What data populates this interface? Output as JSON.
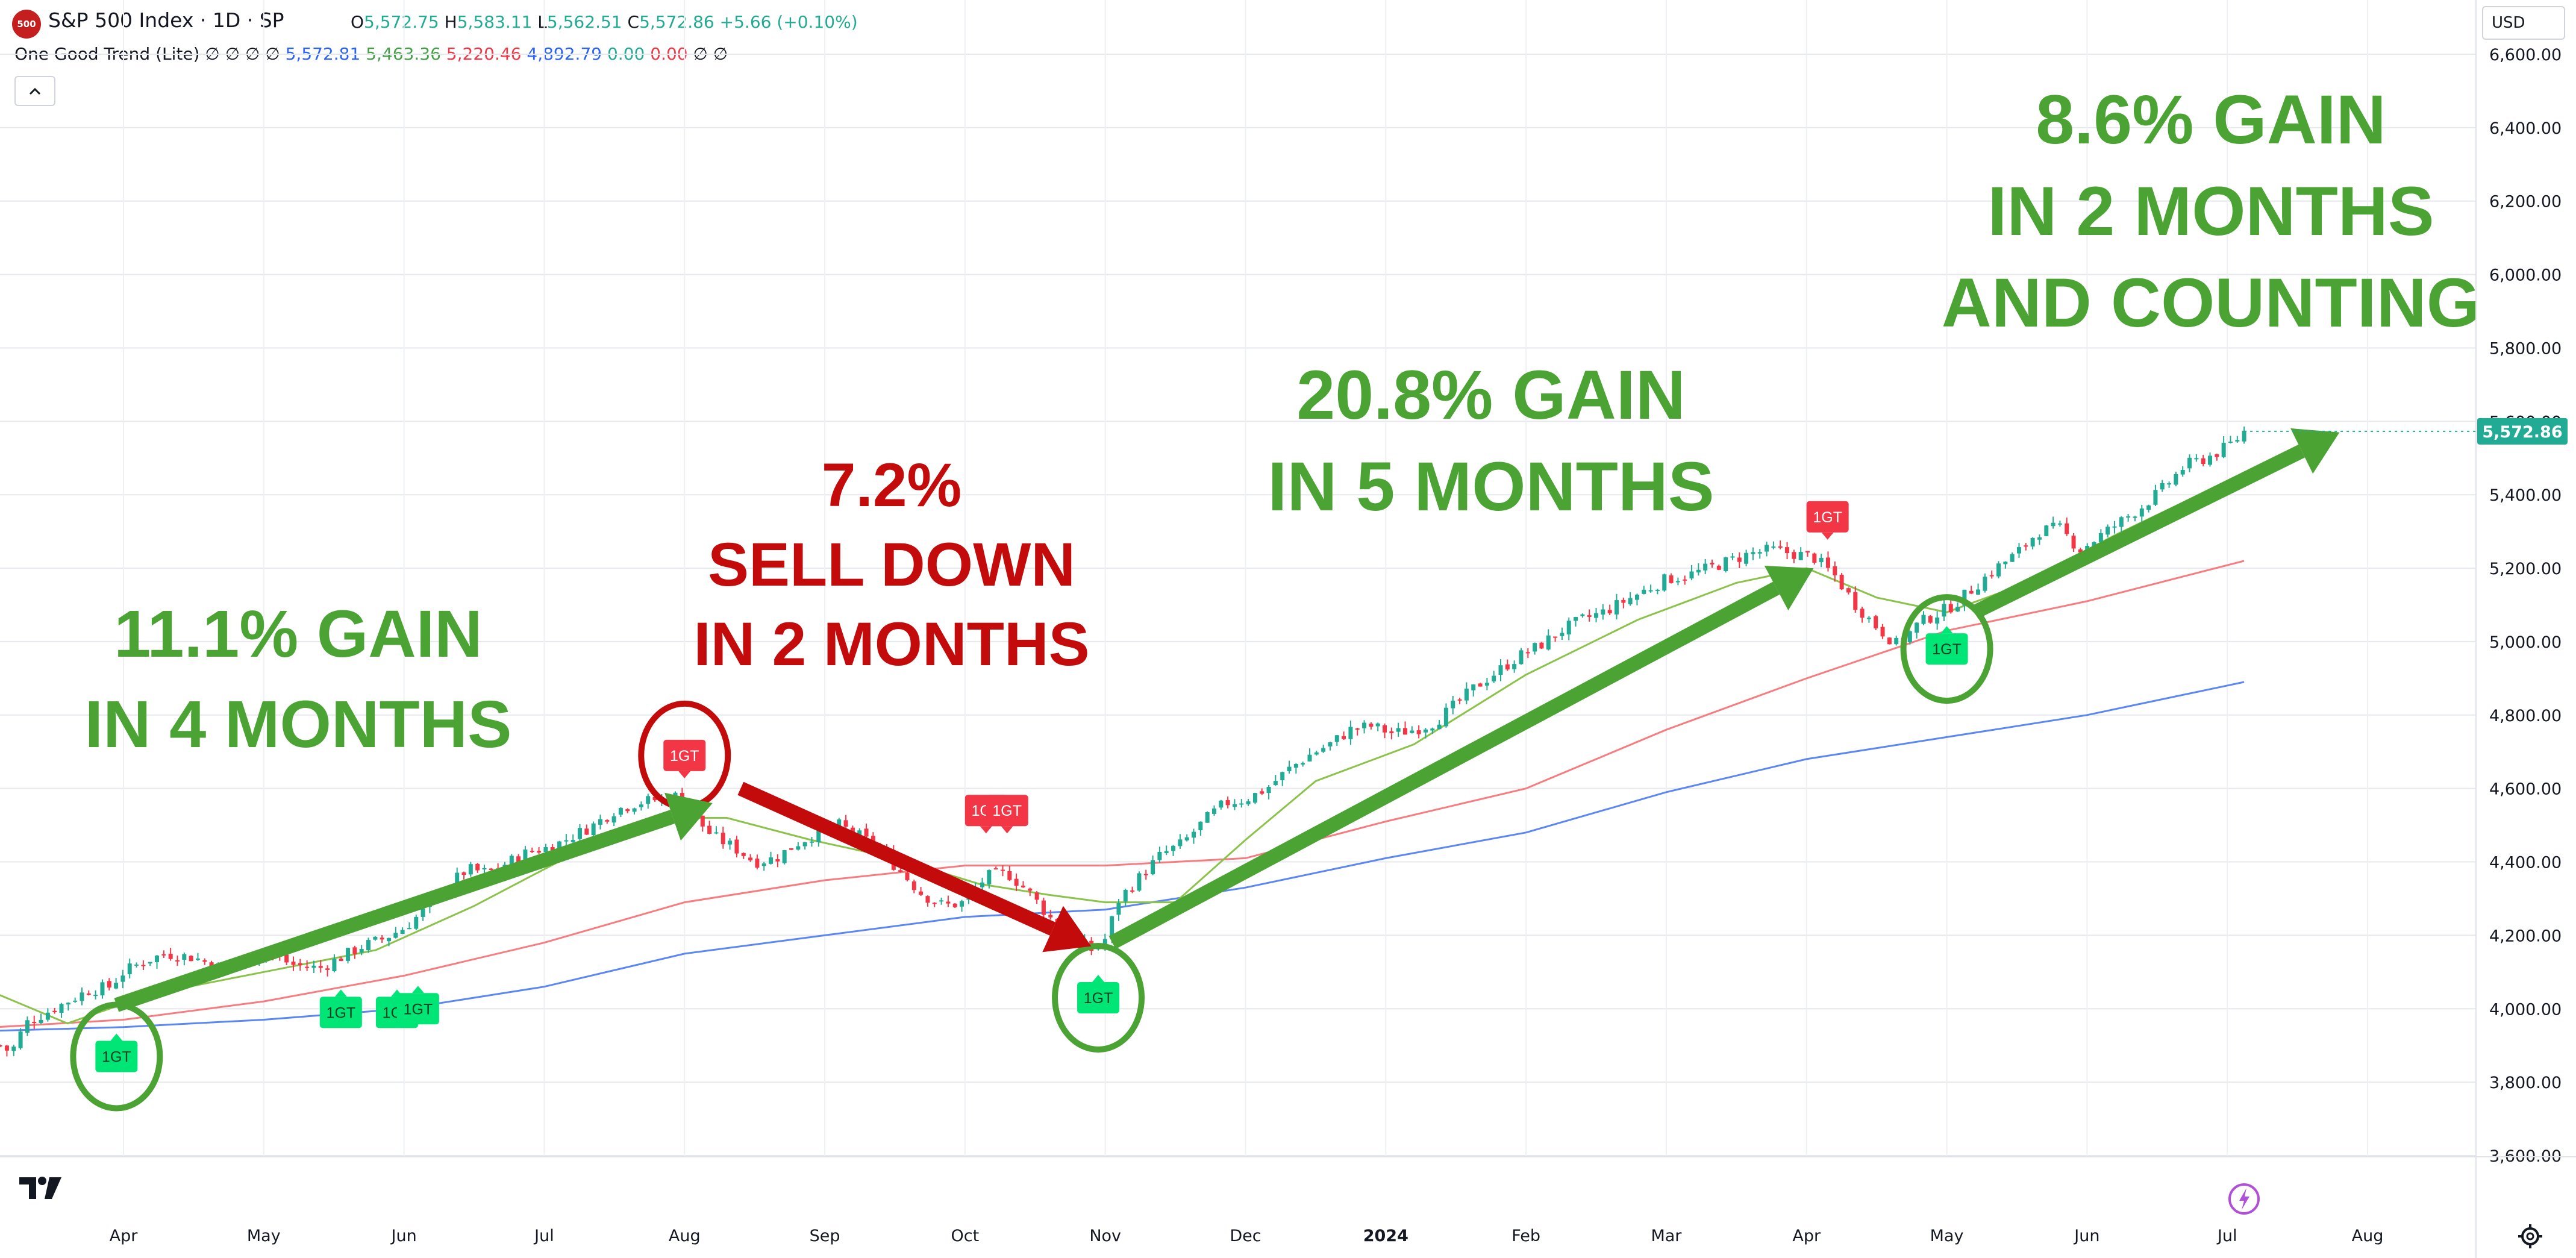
{
  "header": {
    "symbol_badge": "500",
    "title": "S&P 500 Index · 1D · SP",
    "ohlc": [
      {
        "label": "O",
        "value": "5,572.75"
      },
      {
        "label": "H",
        "value": "5,583.11"
      },
      {
        "label": "L",
        "value": "5,562.51"
      },
      {
        "label": "C",
        "value": "5,572.86"
      }
    ],
    "change": "+5.66 (+0.10%)",
    "currency": "USD"
  },
  "indicator": {
    "name": "One Good Trend (Lite)",
    "placeholders": [
      "∅",
      "∅",
      "∅",
      "∅"
    ],
    "values": [
      {
        "value": "5,572.81",
        "color": "#2962ff"
      },
      {
        "value": "5,463.36",
        "color": "#43a047"
      },
      {
        "value": "5,220.46",
        "color": "#f23645"
      },
      {
        "value": "4,892.79",
        "color": "#2962ff"
      },
      {
        "value": "0.00",
        "color": "#22ab94"
      },
      {
        "value": "0.00",
        "color": "#f23645"
      }
    ],
    "trailing": [
      "∅",
      "∅"
    ]
  },
  "colors": {
    "up": "#22ab94",
    "down": "#f23645",
    "ma_fast": "#8bc34a",
    "ma_mid": "#f77c80",
    "ma_slow": "#5b87f5",
    "annotation_green": "#4ba333",
    "annotation_red": "#c40b0b",
    "buy_marker": "#00e676",
    "sell_marker": "#f23645",
    "last_price_bg": "#22ab94"
  },
  "chart_data": {
    "type": "candlestick",
    "title": "S&P 500 Index · 1D · SP",
    "y_ticks": [
      "6,600.00",
      "6,400.00",
      "6,200.00",
      "6,000.00",
      "5,800.00",
      "5,600.00",
      "5,400.00",
      "5,200.00",
      "5,000.00",
      "4,800.00",
      "4,600.00",
      "4,400.00",
      "4,200.00",
      "4,000.00",
      "3,800.00",
      "3,600.00"
    ],
    "ylim": [
      3550,
      6650
    ],
    "x_ticks": [
      {
        "label": "Apr",
        "t": 1.0
      },
      {
        "label": "May",
        "t": 2.0
      },
      {
        "label": "Jun",
        "t": 3.0
      },
      {
        "label": "Jul",
        "t": 4.0
      },
      {
        "label": "Aug",
        "t": 5.0
      },
      {
        "label": "Sep",
        "t": 6.0
      },
      {
        "label": "Oct",
        "t": 7.0
      },
      {
        "label": "Nov",
        "t": 8.0
      },
      {
        "label": "Dec",
        "t": 9.0
      },
      {
        "label": "2024",
        "t": 10.0,
        "bold": true
      },
      {
        "label": "Feb",
        "t": 11.0
      },
      {
        "label": "Mar",
        "t": 12.0
      },
      {
        "label": "Apr",
        "t": 13.0
      },
      {
        "label": "May",
        "t": 14.0
      },
      {
        "label": "Jun",
        "t": 15.0
      },
      {
        "label": "Jul",
        "t": 16.0
      },
      {
        "label": "Aug",
        "t": 17.0
      }
    ],
    "xlim": [
      0.1,
      17.0
    ],
    "last_price": "5,572.86",
    "last_value": 5572.86,
    "hidden_tick_under_label": "5,600.00",
    "price_path": [
      [
        0.12,
        3900
      ],
      [
        0.2,
        3880
      ],
      [
        0.3,
        3960
      ],
      [
        0.45,
        3990
      ],
      [
        0.6,
        4020
      ],
      [
        0.75,
        4050
      ],
      [
        0.9,
        4060
      ],
      [
        1.0,
        4100
      ],
      [
        1.15,
        4130
      ],
      [
        1.3,
        4150
      ],
      [
        1.5,
        4140
      ],
      [
        1.7,
        4110
      ],
      [
        1.85,
        4130
      ],
      [
        2.0,
        4160
      ],
      [
        2.2,
        4120
      ],
      [
        2.4,
        4110
      ],
      [
        2.55,
        4140
      ],
      [
        2.7,
        4170
      ],
      [
        2.85,
        4190
      ],
      [
        3.0,
        4220
      ],
      [
        3.15,
        4270
      ],
      [
        3.3,
        4330
      ],
      [
        3.45,
        4380
      ],
      [
        3.6,
        4370
      ],
      [
        3.75,
        4400
      ],
      [
        3.9,
        4430
      ],
      [
        4.05,
        4440
      ],
      [
        4.2,
        4470
      ],
      [
        4.35,
        4500
      ],
      [
        4.5,
        4540
      ],
      [
        4.65,
        4560
      ],
      [
        4.8,
        4570
      ],
      [
        4.95,
        4580
      ],
      [
        5.05,
        4530
      ],
      [
        5.2,
        4470
      ],
      [
        5.35,
        4440
      ],
      [
        5.5,
        4400
      ],
      [
        5.65,
        4410
      ],
      [
        5.8,
        4450
      ],
      [
        5.95,
        4480
      ],
      [
        6.1,
        4500
      ],
      [
        6.25,
        4470
      ],
      [
        6.4,
        4430
      ],
      [
        6.55,
        4370
      ],
      [
        6.7,
        4310
      ],
      [
        6.85,
        4280
      ],
      [
        7.0,
        4290
      ],
      [
        7.15,
        4360
      ],
      [
        7.3,
        4370
      ],
      [
        7.45,
        4320
      ],
      [
        7.6,
        4250
      ],
      [
        7.75,
        4200
      ],
      [
        7.9,
        4160
      ],
      [
        8.0,
        4190
      ],
      [
        8.1,
        4300
      ],
      [
        8.25,
        4360
      ],
      [
        8.4,
        4420
      ],
      [
        8.55,
        4450
      ],
      [
        8.7,
        4510
      ],
      [
        8.85,
        4560
      ],
      [
        9.0,
        4570
      ],
      [
        9.15,
        4600
      ],
      [
        9.3,
        4650
      ],
      [
        9.45,
        4690
      ],
      [
        9.6,
        4720
      ],
      [
        9.75,
        4760
      ],
      [
        9.9,
        4770
      ],
      [
        10.05,
        4750
      ],
      [
        10.2,
        4760
      ],
      [
        10.35,
        4780
      ],
      [
        10.5,
        4830
      ],
      [
        10.65,
        4880
      ],
      [
        10.8,
        4920
      ],
      [
        10.95,
        4960
      ],
      [
        11.1,
        4990
      ],
      [
        11.25,
        5030
      ],
      [
        11.4,
        5060
      ],
      [
        11.55,
        5080
      ],
      [
        11.7,
        5110
      ],
      [
        11.85,
        5140
      ],
      [
        12.0,
        5170
      ],
      [
        12.15,
        5180
      ],
      [
        12.3,
        5200
      ],
      [
        12.45,
        5220
      ],
      [
        12.6,
        5240
      ],
      [
        12.75,
        5250
      ],
      [
        12.9,
        5240
      ],
      [
        13.05,
        5230
      ],
      [
        13.2,
        5180
      ],
      [
        13.35,
        5100
      ],
      [
        13.5,
        5040
      ],
      [
        13.65,
        4990
      ],
      [
        13.8,
        5050
      ],
      [
        13.95,
        5080
      ],
      [
        14.05,
        5100
      ],
      [
        14.2,
        5150
      ],
      [
        14.35,
        5200
      ],
      [
        14.5,
        5240
      ],
      [
        14.65,
        5300
      ],
      [
        14.8,
        5310
      ],
      [
        14.95,
        5250
      ],
      [
        15.1,
        5290
      ],
      [
        15.25,
        5330
      ],
      [
        15.4,
        5370
      ],
      [
        15.55,
        5420
      ],
      [
        15.7,
        5480
      ],
      [
        15.85,
        5500
      ],
      [
        15.95,
        5520
      ],
      [
        16.05,
        5545
      ],
      [
        16.12,
        5572.86
      ]
    ],
    "ma_fast": [
      [
        0.1,
        4040
      ],
      [
        0.6,
        3960
      ],
      [
        1.2,
        4040
      ],
      [
        2.0,
        4100
      ],
      [
        2.8,
        4160
      ],
      [
        3.5,
        4280
      ],
      [
        4.2,
        4420
      ],
      [
        4.8,
        4520
      ],
      [
        5.3,
        4520
      ],
      [
        5.9,
        4460
      ],
      [
        6.5,
        4410
      ],
      [
        7.1,
        4340
      ],
      [
        7.6,
        4310
      ],
      [
        8.0,
        4290
      ],
      [
        8.5,
        4290
      ],
      [
        9.0,
        4460
      ],
      [
        9.5,
        4620
      ],
      [
        10.2,
        4720
      ],
      [
        11.0,
        4910
      ],
      [
        11.8,
        5060
      ],
      [
        12.5,
        5160
      ],
      [
        13.0,
        5200
      ],
      [
        13.5,
        5120
      ],
      [
        14.0,
        5080
      ],
      [
        14.5,
        5150
      ],
      [
        15.2,
        5290
      ],
      [
        15.8,
        5400
      ],
      [
        16.12,
        5460
      ]
    ],
    "ma_mid": [
      [
        0.1,
        3950
      ],
      [
        1.0,
        3970
      ],
      [
        2.0,
        4020
      ],
      [
        3.0,
        4090
      ],
      [
        4.0,
        4180
      ],
      [
        5.0,
        4290
      ],
      [
        6.0,
        4350
      ],
      [
        7.0,
        4390
      ],
      [
        8.0,
        4390
      ],
      [
        9.0,
        4410
      ],
      [
        10.0,
        4510
      ],
      [
        11.0,
        4600
      ],
      [
        12.0,
        4760
      ],
      [
        13.0,
        4900
      ],
      [
        14.0,
        5030
      ],
      [
        15.0,
        5110
      ],
      [
        16.12,
        5220
      ]
    ],
    "ma_slow": [
      [
        0.1,
        3940
      ],
      [
        1.0,
        3950
      ],
      [
        2.0,
        3970
      ],
      [
        3.0,
        4000
      ],
      [
        4.0,
        4060
      ],
      [
        5.0,
        4150
      ],
      [
        6.0,
        4200
      ],
      [
        7.0,
        4250
      ],
      [
        8.0,
        4270
      ],
      [
        9.0,
        4330
      ],
      [
        10.0,
        4410
      ],
      [
        11.0,
        4480
      ],
      [
        12.0,
        4590
      ],
      [
        13.0,
        4680
      ],
      [
        14.0,
        4740
      ],
      [
        15.0,
        4800
      ],
      [
        16.12,
        4890
      ]
    ],
    "signals": [
      {
        "type": "buy",
        "label": "1GT",
        "t": 0.95,
        "price": 3870,
        "circled": true
      },
      {
        "type": "buy",
        "label": "1GT",
        "t": 2.55,
        "price": 3990
      },
      {
        "type": "buy",
        "label": "1GT",
        "t": 2.95,
        "price": 3990
      },
      {
        "type": "buy",
        "label": "1GT",
        "t": 3.1,
        "price": 4000
      },
      {
        "type": "sell",
        "label": "1GT",
        "t": 5.0,
        "price": 4690,
        "circled": true
      },
      {
        "type": "sell",
        "label": "1GT",
        "t": 7.15,
        "price": 4540
      },
      {
        "type": "sell",
        "label": "1GT",
        "t": 7.3,
        "price": 4540
      },
      {
        "type": "buy",
        "label": "1GT",
        "t": 7.95,
        "price": 4030,
        "circled": true
      },
      {
        "type": "sell",
        "label": "1GT",
        "t": 13.15,
        "price": 5340
      },
      {
        "type": "buy",
        "label": "1GT",
        "t": 14.0,
        "price": 4980,
        "circled": true
      }
    ],
    "annotations": [
      {
        "color": "green",
        "lines": [
          "11.1% GAIN",
          "IN 4 MONTHS"
        ]
      },
      {
        "color": "red",
        "lines": [
          "7.2%",
          "SELL DOWN",
          "IN 2 MONTHS"
        ]
      },
      {
        "color": "green",
        "lines": [
          "20.8% GAIN",
          "IN 5 MONTHS"
        ]
      },
      {
        "color": "green",
        "lines": [
          "8.6% GAIN",
          "IN 2 MONTHS",
          "AND COUNTING"
        ]
      }
    ],
    "arrows": [
      {
        "color": "green",
        "from": [
          0.95,
          4010
        ],
        "to": [
          5.2,
          4560
        ]
      },
      {
        "color": "red",
        "from": [
          5.4,
          4600
        ],
        "to": [
          7.9,
          4170
        ]
      },
      {
        "color": "green",
        "from": [
          8.05,
          4180
        ],
        "to": [
          13.05,
          5200
        ]
      },
      {
        "color": "green",
        "from": [
          14.2,
          5080
        ],
        "to": [
          16.8,
          5570
        ]
      }
    ],
    "grid": true
  }
}
